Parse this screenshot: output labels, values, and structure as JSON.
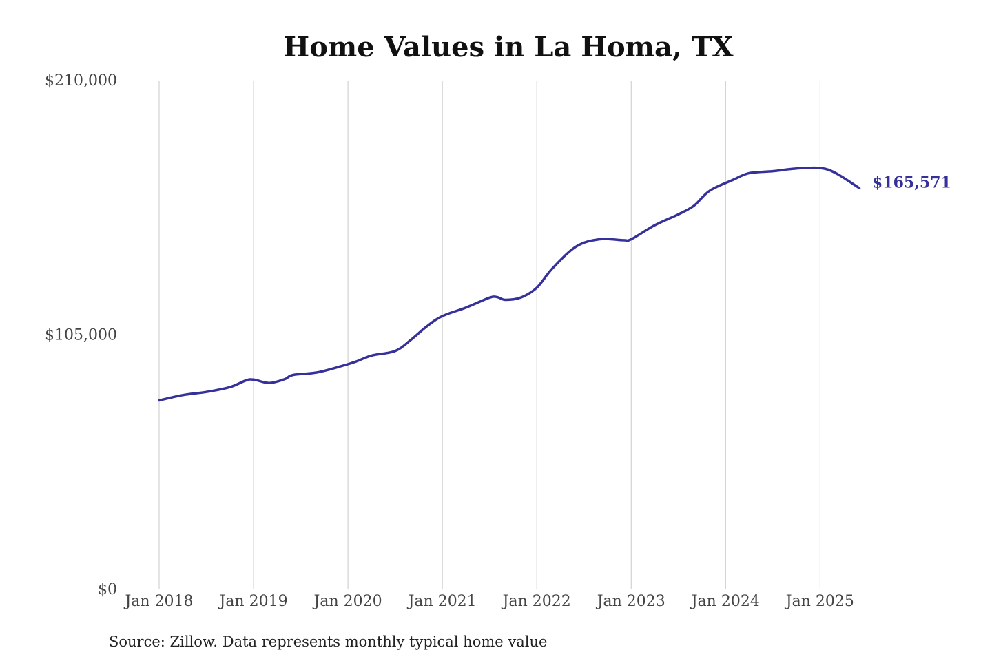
{
  "colors": {
    "line": "#35309a",
    "grid": "#c9c9c9",
    "background": "#ffffff"
  },
  "chart_data": {
    "type": "line",
    "title": "Home Values in La Homa, TX",
    "xlabel": "",
    "ylabel": "",
    "ylim": [
      0,
      210000
    ],
    "yticks": [
      0,
      105000,
      210000
    ],
    "ytick_labels": [
      "$0",
      "$105,000",
      "$210,000"
    ],
    "xlim": [
      "2018-01",
      "2025-06"
    ],
    "xtick_labels": [
      "Jan 2018",
      "Jan 2019",
      "Jan 2020",
      "Jan 2021",
      "Jan 2022",
      "Jan 2023",
      "Jan 2024",
      "Jan 2025"
    ],
    "grid": "vertical",
    "legend": "none",
    "end_label": "$165,571",
    "series": [
      {
        "points": [
          [
            "2018-01",
            78000
          ],
          [
            "2018-04",
            80200
          ],
          [
            "2018-07",
            81500
          ],
          [
            "2018-10",
            83500
          ],
          [
            "2018-12",
            86200
          ],
          [
            "2019-01",
            86600
          ],
          [
            "2019-03",
            85200
          ],
          [
            "2019-05",
            86800
          ],
          [
            "2019-06",
            88500
          ],
          [
            "2019-09",
            89500
          ],
          [
            "2019-12",
            92000
          ],
          [
            "2020-02",
            94000
          ],
          [
            "2020-04",
            96500
          ],
          [
            "2020-07",
            98400
          ],
          [
            "2020-09",
            103000
          ],
          [
            "2020-11",
            108500
          ],
          [
            "2021-01",
            112800
          ],
          [
            "2021-04",
            116300
          ],
          [
            "2021-07",
            120400
          ],
          [
            "2021-08",
            120600
          ],
          [
            "2021-09",
            119500
          ],
          [
            "2021-11",
            120500
          ],
          [
            "2022-01",
            124500
          ],
          [
            "2022-03",
            132500
          ],
          [
            "2022-06",
            141500
          ],
          [
            "2022-09",
            144500
          ],
          [
            "2022-12",
            144100
          ],
          [
            "2023-01",
            144500
          ],
          [
            "2023-04",
            150300
          ],
          [
            "2023-07",
            154800
          ],
          [
            "2023-09",
            158400
          ],
          [
            "2023-11",
            164600
          ],
          [
            "2024-02",
            169100
          ],
          [
            "2024-04",
            171800
          ],
          [
            "2024-07",
            172600
          ],
          [
            "2024-10",
            173700
          ],
          [
            "2025-01",
            173900
          ],
          [
            "2025-03",
            171800
          ],
          [
            "2025-06",
            165571
          ]
        ]
      }
    ]
  },
  "footer": {
    "source": "Source: Zillow. Data represents monthly typical home value"
  }
}
